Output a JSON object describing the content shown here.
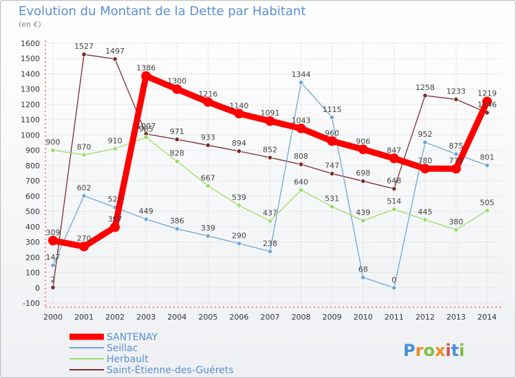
{
  "header": {
    "title": "Evolution du Montant de la Dette par Habitant",
    "subtitle": "(en €)"
  },
  "logo": {
    "text": "Proxiti"
  },
  "colors": {
    "SANTENAY": "#ff0000",
    "Seillac": "#6fa6d8",
    "Herbault": "#99dd66",
    "Saint-Étienne-des-Guérets": "#7b2a2a"
  },
  "chart_data": {
    "type": "line",
    "title": "Evolution du Montant de la Dette par Habitant",
    "subtitle": "(en €)",
    "xlabel": "",
    "ylabel": "",
    "x": [
      "2000",
      "2001",
      "2002",
      "2003",
      "2004",
      "2005",
      "2006",
      "2007",
      "2008",
      "2009",
      "2010",
      "2011",
      "2012",
      "2013",
      "2014"
    ],
    "yticks": [
      -100,
      0,
      100,
      200,
      300,
      400,
      500,
      600,
      700,
      800,
      900,
      1000,
      1100,
      1200,
      1300,
      1400,
      1500,
      1600
    ],
    "ylim": [
      -100,
      1600
    ],
    "grid": true,
    "legend": "bottom-left",
    "series": [
      {
        "name": "SANTENAY",
        "values": [
          309,
          270,
          397,
          1386,
          1300,
          1216,
          1140,
          1091,
          1043,
          960,
          906,
          847,
          780,
          779,
          1219
        ],
        "labels": [
          "309",
          "270",
          "397",
          "1386",
          "1300",
          "1216",
          "1140",
          "1091",
          "1043",
          "960",
          "906",
          "847",
          "780",
          "779",
          "1219"
        ]
      },
      {
        "name": "Seillac",
        "values": [
          147,
          602,
          527,
          449,
          386,
          339,
          290,
          238,
          1344,
          1115,
          68,
          0,
          952,
          875,
          801
        ],
        "labels": [
          "147",
          "602",
          "527",
          "449",
          "386",
          "339",
          "290",
          "238",
          "1344",
          "1115",
          "68",
          "0",
          "952",
          "875",
          "801"
        ]
      },
      {
        "name": "Herbault",
        "values": [
          900,
          870,
          910,
          985,
          828,
          667,
          539,
          437,
          640,
          531,
          439,
          514,
          445,
          380,
          505
        ],
        "labels": [
          "900",
          "870",
          "910",
          "985",
          "828",
          "667",
          "539",
          "437",
          "640",
          "531",
          "439",
          "514",
          "445",
          "380",
          "505"
        ]
      },
      {
        "name": "Saint-Étienne-des-Guérets",
        "values": [
          2,
          1527,
          1497,
          1007,
          971,
          933,
          894,
          852,
          808,
          747,
          698,
          648,
          1258,
          1233,
          1146
        ],
        "labels": [
          "2",
          "1527",
          "1497",
          "1007",
          "971",
          "933",
          "894",
          "852",
          "808",
          "747",
          "698",
          "648",
          "1258",
          "1233",
          "1146"
        ]
      }
    ]
  }
}
